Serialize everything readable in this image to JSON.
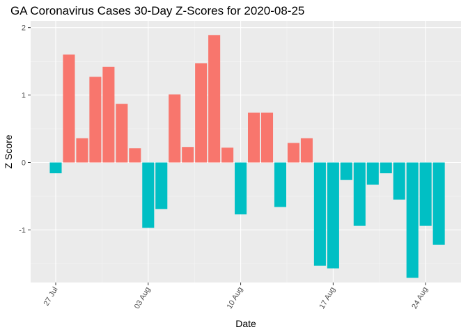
{
  "chart_data": {
    "type": "bar",
    "title": "GA Coronavirus Cases 30-Day Z-Scores for 2020-08-25",
    "xlabel": "Date",
    "ylabel": "Z Score",
    "ylim": [
      -1.78,
      2.1
    ],
    "y_ticks": [
      {
        "value": -1,
        "label": "-1"
      },
      {
        "value": 0,
        "label": "0"
      },
      {
        "value": 1,
        "label": "1"
      },
      {
        "value": 2,
        "label": "2"
      }
    ],
    "x_ticks": [
      {
        "index": 0,
        "label": "27 Jul"
      },
      {
        "index": 7,
        "label": "03 Aug"
      },
      {
        "index": 14,
        "label": "10 Aug"
      },
      {
        "index": 21,
        "label": "17 Aug"
      },
      {
        "index": 28,
        "label": "24 Aug"
      }
    ],
    "categories": [
      "2020-07-27",
      "2020-07-28",
      "2020-07-29",
      "2020-07-30",
      "2020-07-31",
      "2020-08-01",
      "2020-08-02",
      "2020-08-03",
      "2020-08-04",
      "2020-08-05",
      "2020-08-06",
      "2020-08-07",
      "2020-08-08",
      "2020-08-09",
      "2020-08-10",
      "2020-08-11",
      "2020-08-12",
      "2020-08-13",
      "2020-08-14",
      "2020-08-15",
      "2020-08-16",
      "2020-08-17",
      "2020-08-18",
      "2020-08-19",
      "2020-08-20",
      "2020-08-21",
      "2020-08-22",
      "2020-08-23",
      "2020-08-24",
      "2020-08-25"
    ],
    "values": [
      -0.16,
      1.6,
      0.36,
      1.27,
      1.42,
      0.87,
      0.21,
      -0.97,
      -0.69,
      1.01,
      0.23,
      1.47,
      1.89,
      0.22,
      -0.77,
      0.74,
      0.74,
      -0.66,
      0.29,
      0.36,
      -1.53,
      -1.57,
      -0.26,
      -0.94,
      -0.33,
      -0.16,
      -0.55,
      -1.71,
      -0.94,
      -1.22
    ],
    "colors": {
      "positive": "#F8766D",
      "negative": "#00BFC4",
      "panel": "#EBEBEB",
      "grid_major": "#FFFFFF",
      "grid_minor": "#F5F5F5"
    }
  }
}
